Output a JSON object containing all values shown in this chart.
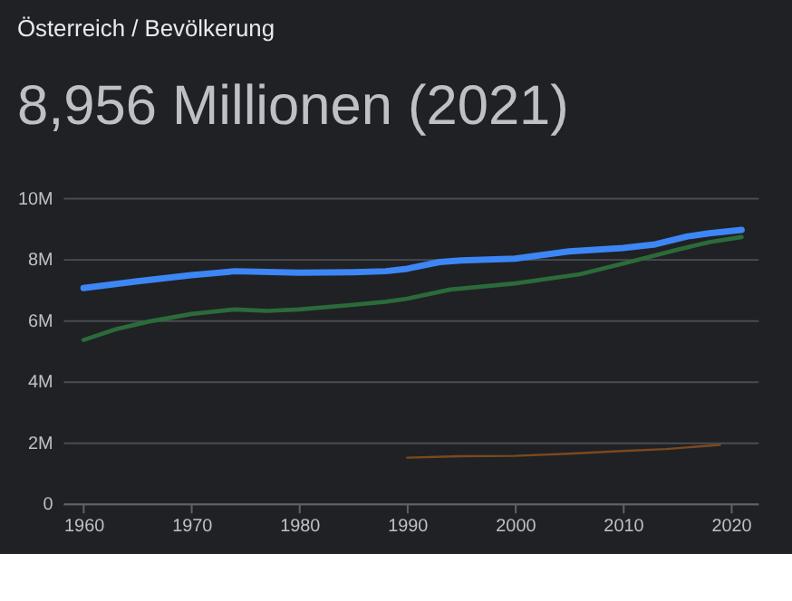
{
  "chart_data": {
    "type": "line",
    "title": "Österreich / Bevölkerung",
    "subtitle": "8,956 Millionen (2021)",
    "xlim": [
      1958.1,
      2022.5
    ],
    "xticks": [
      1960,
      1970,
      1980,
      1990,
      2000,
      2010,
      2020
    ],
    "ylim": [
      0,
      10
    ],
    "yticks": [
      {
        "value": 0,
        "label": "0"
      },
      {
        "value": 2,
        "label": "2M"
      },
      {
        "value": 4,
        "label": "4M"
      },
      {
        "value": 6,
        "label": "6M"
      },
      {
        "value": 8,
        "label": "8M"
      },
      {
        "value": 10,
        "label": "10M"
      }
    ],
    "grid": "y",
    "series": [
      {
        "color": "#3d86f5",
        "x": [
          1960,
          1965,
          1970,
          1974,
          1980,
          1985,
          1988,
          1990,
          1993,
          1995,
          2000,
          2005,
          2010,
          2013,
          2016,
          2018,
          2021
        ],
        "values": [
          7.05,
          7.27,
          7.47,
          7.6,
          7.55,
          7.57,
          7.6,
          7.68,
          7.9,
          7.95,
          8.01,
          8.25,
          8.36,
          8.48,
          8.74,
          8.84,
          8.95
        ]
      },
      {
        "color": "#2b6b3a",
        "x": [
          1960,
          1963,
          1966,
          1970,
          1974,
          1977,
          1980,
          1985,
          1988,
          1990,
          1994,
          2000,
          2006,
          2010,
          2015,
          2018,
          2021
        ],
        "values": [
          5.35,
          5.7,
          5.95,
          6.2,
          6.35,
          6.3,
          6.35,
          6.5,
          6.6,
          6.7,
          7.0,
          7.2,
          7.5,
          7.85,
          8.3,
          8.55,
          8.72
        ]
      },
      {
        "color": "#7a4a1e",
        "x": [
          1990,
          1995,
          2000,
          2005,
          2010,
          2014,
          2019
        ],
        "values": [
          1.5,
          1.55,
          1.56,
          1.63,
          1.72,
          1.78,
          1.92
        ]
      }
    ]
  }
}
